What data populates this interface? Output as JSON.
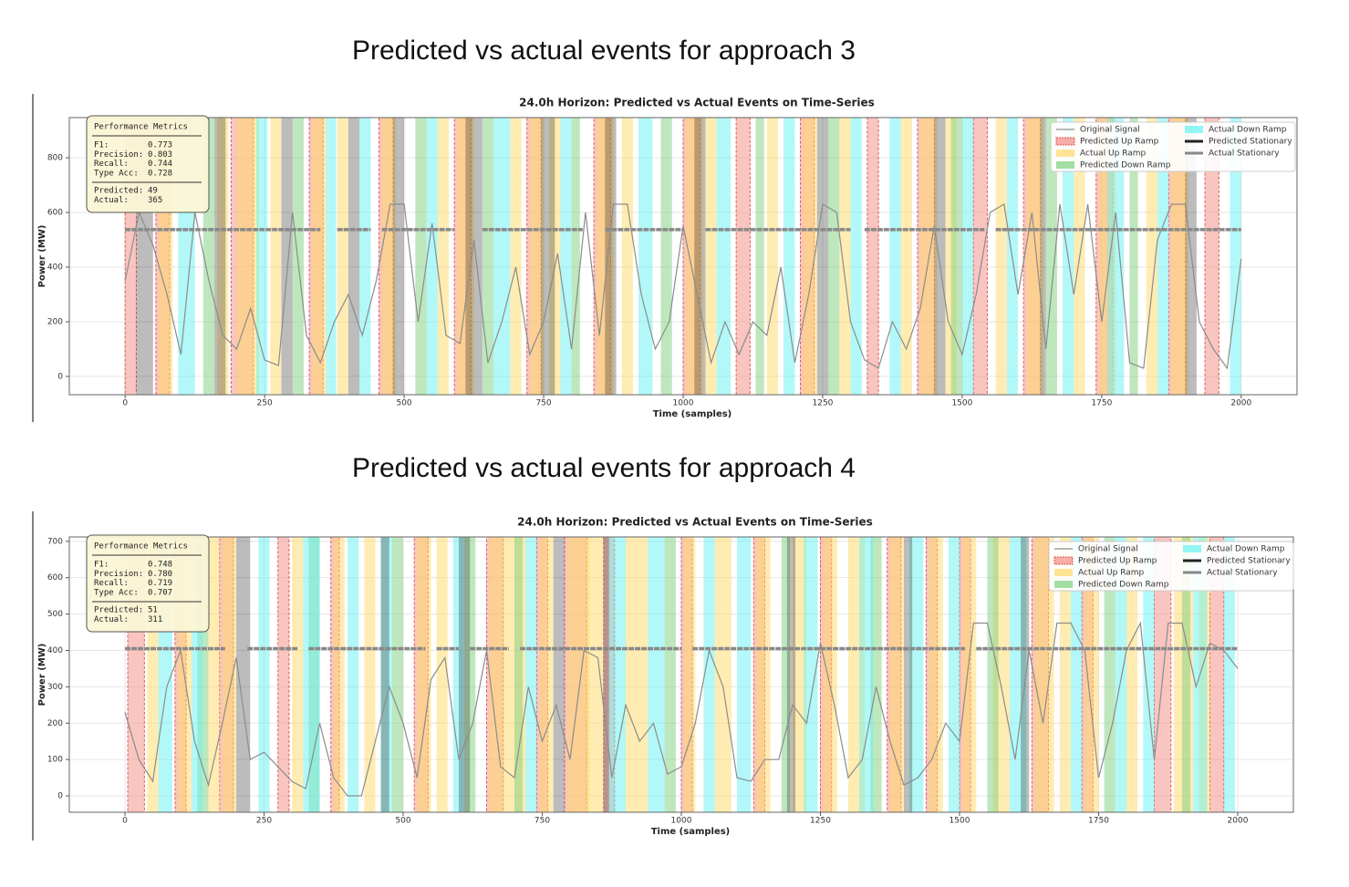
{
  "headings": [
    "Predicted vs actual events for approach 3",
    "Predicted vs actual events for approach 4"
  ],
  "chart_data": [
    {
      "type": "line",
      "title": "24.0h Horizon: Predicted vs Actual Events on Time-Series",
      "x_label": "Time (samples)",
      "y_label": "Power (MW)",
      "xlim": [
        -100,
        2100
      ],
      "ylim": [
        -67,
        947
      ],
      "xticks": [
        0,
        250,
        500,
        750,
        1000,
        1250,
        1500,
        1750,
        2000
      ],
      "yticks": [
        0,
        200,
        400,
        600,
        800
      ],
      "grid": true,
      "x": [
        0,
        25,
        50,
        75,
        100,
        125,
        150,
        175,
        200,
        225,
        250,
        275,
        300,
        325,
        350,
        375,
        400,
        425,
        450,
        475,
        500,
        525,
        550,
        575,
        600,
        625,
        650,
        675,
        700,
        725,
        750,
        775,
        800,
        825,
        850,
        875,
        900,
        925,
        950,
        975,
        1000,
        1025,
        1050,
        1075,
        1100,
        1125,
        1150,
        1175,
        1200,
        1225,
        1250,
        1275,
        1300,
        1325,
        1350,
        1375,
        1400,
        1425,
        1450,
        1475,
        1500,
        1525,
        1550,
        1575,
        1600,
        1625,
        1650,
        1675,
        1700,
        1725,
        1750,
        1775,
        1800,
        1825,
        1850,
        1875,
        1900,
        1925,
        1950,
        1975,
        2000
      ],
      "series": [
        {
          "name": "Original Signal",
          "color": "#8c8c8c",
          "values": [
            350,
            600,
            480,
            300,
            80,
            600,
            350,
            150,
            100,
            250,
            60,
            40,
            600,
            150,
            50,
            200,
            300,
            150,
            350,
            630,
            630,
            200,
            560,
            150,
            120,
            500,
            50,
            200,
            400,
            80,
            200,
            450,
            100,
            600,
            150,
            630,
            630,
            300,
            100,
            200,
            550,
            300,
            50,
            200,
            80,
            200,
            150,
            400,
            50,
            300,
            630,
            600,
            200,
            60,
            30,
            200,
            100,
            250,
            550,
            200,
            80,
            300,
            600,
            630,
            300,
            600,
            100,
            630,
            300,
            630,
            200,
            600,
            50,
            30,
            500,
            630,
            630,
            200,
            100,
            30,
            430
          ]
        }
      ],
      "events": [
        {
          "name": "Predicted Up Ramp",
          "color": "#f28b82",
          "marker": "patch",
          "starts": [
            0,
            55,
            190,
            330,
            455,
            590,
            720,
            840,
            1000,
            1095,
            1210,
            1330,
            1420,
            1520,
            1610,
            1740,
            1870,
            1935
          ],
          "ends": [
            20,
            80,
            230,
            355,
            480,
            620,
            745,
            870,
            1030,
            1120,
            1235,
            1350,
            1450,
            1545,
            1640,
            1770,
            1900,
            1960
          ]
        },
        {
          "name": "Actual Up Ramp",
          "color": "#ffd966",
          "marker": "patch",
          "starts": [
            60,
            165,
            200,
            260,
            335,
            380,
            460,
            560,
            595,
            690,
            725,
            760,
            845,
            890,
            1005,
            1040,
            1150,
            1215,
            1280,
            1390,
            1425,
            1470,
            1560,
            1615,
            1700,
            1745,
            1830,
            1875
          ],
          "ends": [
            85,
            185,
            240,
            280,
            360,
            400,
            485,
            580,
            625,
            710,
            750,
            780,
            875,
            910,
            1035,
            1060,
            1170,
            1240,
            1300,
            1410,
            1455,
            1490,
            1580,
            1645,
            1720,
            1775,
            1850,
            1905
          ]
        },
        {
          "name": "Predicted Down Ramp",
          "color": "#7dcf7d",
          "marker": "patch",
          "starts": [
            140,
            300,
            520,
            640,
            800,
            960,
            1130,
            1260,
            1480,
            1650,
            1800
          ],
          "ends": [
            160,
            320,
            540,
            660,
            815,
            980,
            1145,
            1280,
            1500,
            1670,
            1815
          ]
        },
        {
          "name": "Actual Down Ramp",
          "color": "#66f2f2",
          "marker": "patch",
          "starts": [
            95,
            235,
            360,
            420,
            540,
            660,
            780,
            920,
            1060,
            1180,
            1300,
            1370,
            1500,
            1580,
            1680,
            1760,
            1850,
            1980
          ],
          "ends": [
            125,
            255,
            378,
            440,
            560,
            690,
            800,
            945,
            1085,
            1200,
            1320,
            1390,
            1520,
            1600,
            1700,
            1790,
            1870,
            2000
          ]
        },
        {
          "name": "Predicted Stationary",
          "color": "#222222",
          "marker": "line",
          "starts": [
            20,
            160,
            280,
            400,
            480,
            610,
            745,
            860,
            1020,
            1240,
            1450,
            1640,
            1900
          ],
          "ends": [
            50,
            180,
            300,
            420,
            500,
            640,
            770,
            880,
            1040,
            1260,
            1470,
            1650,
            1920
          ]
        },
        {
          "name": "Actual Stationary",
          "color": "#888888",
          "marker": "line",
          "level": 537,
          "starts": [
            0,
            380,
            460,
            640,
            860,
            1040,
            1325,
            1560
          ],
          "ends": [
            350,
            440,
            590,
            820,
            1000,
            1300,
            1540,
            2000
          ]
        }
      ],
      "metrics": {
        "title": "Performance Metrics",
        "items": [
          {
            "label": "F1:",
            "value": "0.773"
          },
          {
            "label": "Precision:",
            "value": "0.803"
          },
          {
            "label": "Recall:",
            "value": "0.744"
          },
          {
            "label": "Type Acc:",
            "value": "0.728"
          },
          {
            "label": "Predicted:",
            "value": "49"
          },
          {
            "label": "Actual:",
            "value": "365"
          }
        ]
      }
    },
    {
      "type": "line",
      "title": "24.0h Horizon: Predicted vs Actual Events on Time-Series",
      "x_label": "Time (samples)",
      "y_label": "Power (MW)",
      "xlim": [
        -100,
        2100
      ],
      "ylim": [
        -45,
        712
      ],
      "xticks": [
        0,
        250,
        500,
        750,
        1000,
        1250,
        1500,
        1750,
        2000
      ],
      "yticks": [
        0,
        100,
        200,
        300,
        400,
        500,
        600,
        700
      ],
      "grid": true,
      "x": [
        0,
        25,
        50,
        75,
        100,
        125,
        150,
        175,
        200,
        225,
        250,
        275,
        300,
        325,
        350,
        375,
        400,
        425,
        450,
        475,
        500,
        525,
        550,
        575,
        600,
        625,
        650,
        675,
        700,
        725,
        750,
        775,
        800,
        825,
        850,
        875,
        900,
        925,
        950,
        975,
        1000,
        1025,
        1050,
        1075,
        1100,
        1125,
        1150,
        1175,
        1200,
        1225,
        1250,
        1275,
        1300,
        1325,
        1350,
        1375,
        1400,
        1425,
        1450,
        1475,
        1500,
        1525,
        1550,
        1575,
        1600,
        1625,
        1650,
        1675,
        1700,
        1725,
        1750,
        1775,
        1800,
        1825,
        1850,
        1875,
        1900,
        1925,
        1950,
        1975,
        2000
      ],
      "series": [
        {
          "name": "Original Signal",
          "color": "#8c8c8c",
          "values": [
            230,
            100,
            40,
            300,
            400,
            150,
            30,
            200,
            380,
            100,
            120,
            80,
            40,
            20,
            200,
            50,
            0,
            0,
            150,
            300,
            200,
            50,
            320,
            380,
            100,
            200,
            400,
            80,
            50,
            300,
            150,
            250,
            100,
            400,
            380,
            50,
            250,
            150,
            200,
            60,
            80,
            200,
            400,
            300,
            50,
            40,
            100,
            100,
            250,
            200,
            420,
            250,
            50,
            100,
            300,
            150,
            30,
            50,
            100,
            200,
            150,
            475,
            475,
            300,
            100,
            400,
            200,
            475,
            475,
            400,
            50,
            200,
            400,
            475,
            100,
            475,
            475,
            300,
            420,
            400,
            350
          ]
        }
      ],
      "events": [
        {
          "name": "Predicted Up Ramp",
          "color": "#f28b82",
          "marker": "patch",
          "starts": [
            5,
            90,
            170,
            275,
            370,
            520,
            650,
            740,
            790,
            860,
            1000,
            1130,
            1250,
            1370,
            1440,
            1500,
            1630,
            1720,
            1850,
            1950
          ],
          "ends": [
            35,
            110,
            195,
            295,
            385,
            545,
            680,
            760,
            830,
            880,
            1020,
            1150,
            1270,
            1395,
            1460,
            1520,
            1660,
            1740,
            1880,
            1975
          ]
        },
        {
          "name": "Actual Up Ramp",
          "color": "#ffd966",
          "marker": "patch",
          "starts": [
            40,
            95,
            150,
            175,
            300,
            375,
            430,
            525,
            560,
            655,
            690,
            745,
            795,
            830,
            900,
            1005,
            1060,
            1135,
            1200,
            1255,
            1300,
            1375,
            1445,
            1505,
            1560,
            1635,
            1680,
            1725,
            1800,
            1885,
            1930
          ],
          "ends": [
            60,
            120,
            170,
            200,
            320,
            395,
            450,
            550,
            580,
            690,
            720,
            770,
            835,
            860,
            940,
            1025,
            1090,
            1160,
            1225,
            1280,
            1330,
            1400,
            1470,
            1530,
            1590,
            1670,
            1700,
            1750,
            1820,
            1920,
            1950
          ]
        },
        {
          "name": "Predicted Down Ramp",
          "color": "#7dcf7d",
          "marker": "patch",
          "starts": [
            130,
            330,
            480,
            610,
            700,
            970,
            1180,
            1340,
            1550,
            1760,
            1900
          ],
          "ends": [
            150,
            350,
            500,
            630,
            715,
            990,
            1195,
            1360,
            1570,
            1780,
            1915
          ]
        },
        {
          "name": "Actual Down Ramp",
          "color": "#66f2f2",
          "marker": "patch",
          "starts": [
            60,
            120,
            240,
            320,
            400,
            460,
            590,
            720,
            870,
            940,
            1040,
            1100,
            1220,
            1320,
            1410,
            1480,
            1590,
            1700,
            1780,
            1830,
            1920,
            1975
          ],
          "ends": [
            85,
            140,
            260,
            350,
            420,
            480,
            610,
            740,
            900,
            970,
            1060,
            1125,
            1245,
            1345,
            1435,
            1500,
            1620,
            1720,
            1800,
            1850,
            1945,
            1995
          ]
        },
        {
          "name": "Predicted Stationary",
          "color": "#222222",
          "marker": "line",
          "starts": [
            200,
            460,
            600,
            770,
            860,
            1190,
            1400,
            1610
          ],
          "ends": [
            225,
            475,
            620,
            790,
            870,
            1205,
            1415,
            1625
          ]
        },
        {
          "name": "Actual Stationary",
          "color": "#888888",
          "marker": "line",
          "level": 405,
          "starts": [
            0,
            220,
            330,
            560,
            620,
            710,
            1020,
            1530
          ],
          "ends": [
            180,
            310,
            540,
            600,
            690,
            1000,
            1510,
            2000
          ]
        }
      ],
      "metrics": {
        "title": "Performance Metrics",
        "items": [
          {
            "label": "F1:",
            "value": "0.748"
          },
          {
            "label": "Precision:",
            "value": "0.780"
          },
          {
            "label": "Recall:",
            "value": "0.719"
          },
          {
            "label": "Type Acc:",
            "value": "0.707"
          },
          {
            "label": "Predicted:",
            "value": "51"
          },
          {
            "label": "Actual:",
            "value": "311"
          }
        ]
      }
    }
  ]
}
